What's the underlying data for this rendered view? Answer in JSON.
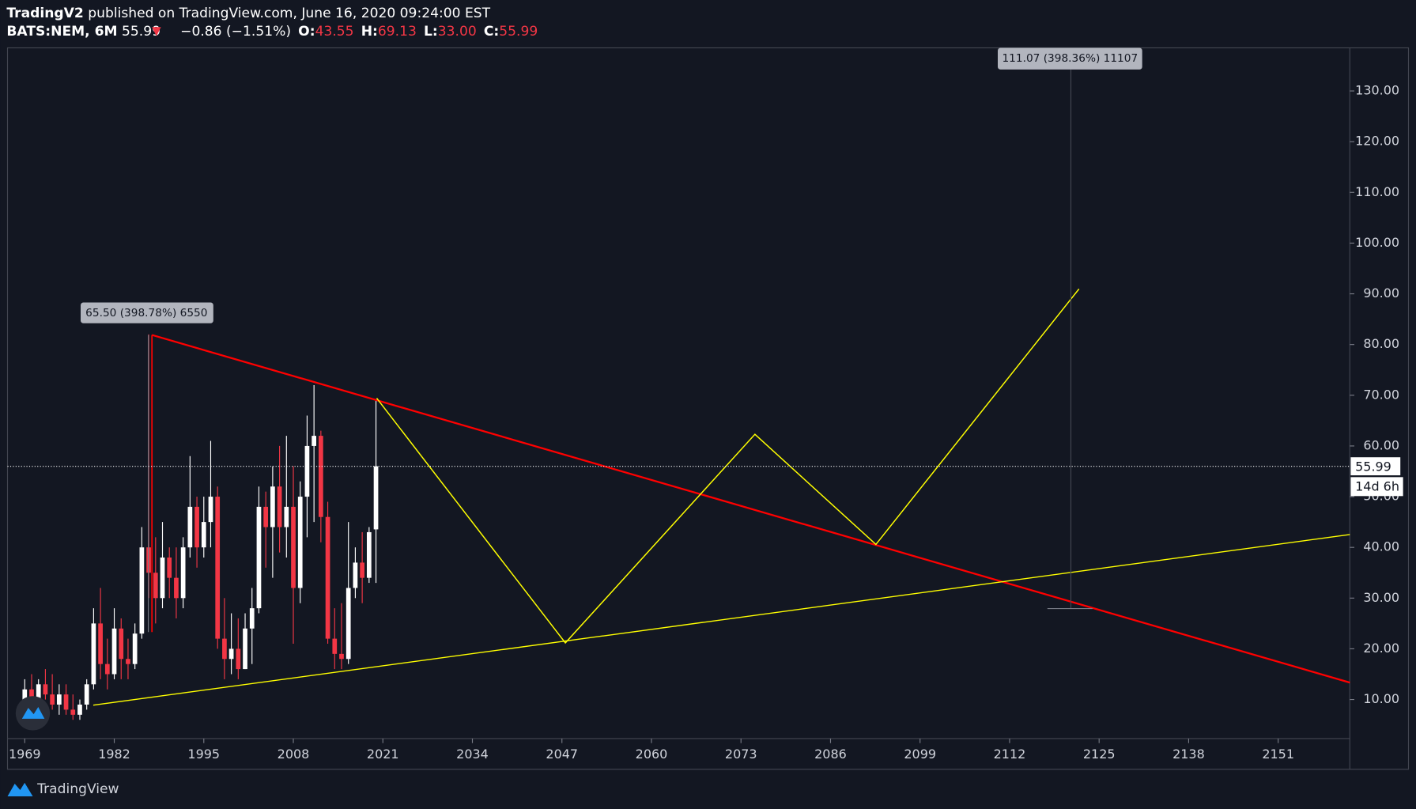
{
  "header": {
    "author": "TradingV2",
    "published": "published on TradingView.com, June 16, 2020 09:24:00 EST",
    "symbol": "BATS:NEM, 6M",
    "last": "55.99",
    "change": "−0.86 (−1.51%)",
    "ohlc": [
      {
        "label": "O:",
        "value": "43.55"
      },
      {
        "label": "H:",
        "value": "69.13"
      },
      {
        "label": "L:",
        "value": "33.00"
      },
      {
        "label": "C:",
        "value": "55.99"
      }
    ]
  },
  "chart_data": {
    "type": "candlestick",
    "ylim": [
      2.3,
      138.5
    ],
    "yticks": [
      {
        "value": 10,
        "label": "10.00"
      },
      {
        "value": 20,
        "label": "20.00"
      },
      {
        "value": 30,
        "label": "30.00"
      },
      {
        "value": 40,
        "label": "40.00"
      },
      {
        "value": 50,
        "label": "50.00"
      },
      {
        "value": 60,
        "label": "60.00"
      },
      {
        "value": 70,
        "label": "70.00"
      },
      {
        "value": 80,
        "label": "80.00"
      },
      {
        "value": 90,
        "label": "90.00"
      },
      {
        "value": 100,
        "label": "100.00"
      },
      {
        "value": 110,
        "label": "110.00"
      },
      {
        "value": 120,
        "label": "120.00"
      },
      {
        "value": 130,
        "label": "130.00"
      }
    ],
    "xlim": [
      1966.5,
      2161.4
    ],
    "xticks": [
      1969,
      1982,
      1995,
      2008,
      2021,
      2034,
      2047,
      2060,
      2073,
      2086,
      2099,
      2112,
      2125,
      2138,
      2151
    ],
    "up_color": "#ffffff",
    "down_color": "#f23645",
    "x": [
      1969,
      1970,
      1971,
      1972,
      1973,
      1974,
      1975,
      1976,
      1977,
      1978,
      1979,
      1980,
      1981,
      1982,
      1983,
      1984,
      1985,
      1986,
      1987,
      1988,
      1989,
      1990,
      1991,
      1992,
      1993,
      1994,
      1995,
      1996,
      1997,
      1998,
      1999,
      2000,
      2001,
      2002,
      2003,
      2004,
      2005,
      2006,
      2007,
      2008,
      2009,
      2010,
      2011,
      2012,
      2013,
      2014,
      2015,
      2016,
      2017,
      2018,
      2019,
      2020
    ],
    "open": [
      10,
      12,
      10,
      13,
      11,
      9,
      11,
      8,
      7,
      9,
      13,
      25,
      17,
      15,
      24,
      18,
      17,
      23,
      40,
      35,
      30,
      38,
      34,
      30,
      40,
      48,
      40,
      45,
      50,
      22,
      18,
      20,
      16,
      24,
      28,
      48,
      44,
      52,
      44,
      48,
      32,
      50,
      60,
      62,
      46,
      22,
      19,
      18,
      32,
      37,
      34,
      43.55
    ],
    "high": [
      14,
      15,
      14,
      16,
      15,
      13,
      13,
      11,
      10,
      14,
      28,
      32,
      22,
      28,
      26,
      22,
      25,
      44,
      82,
      42,
      45,
      40,
      40,
      42,
      58,
      50,
      50,
      61,
      52,
      30,
      27,
      26,
      27,
      32,
      52,
      51,
      56,
      60,
      62,
      56,
      53,
      66,
      72,
      63,
      49,
      28,
      29,
      45,
      40,
      43,
      44,
      69.13
    ],
    "low": [
      8,
      9,
      9,
      10,
      8,
      7,
      7,
      6,
      6,
      8,
      12,
      14,
      12,
      14,
      14,
      14,
      16,
      22,
      30,
      25,
      28,
      30,
      26,
      28,
      38,
      36,
      38,
      40,
      20,
      14,
      15,
      14,
      16,
      17,
      27,
      36,
      34,
      39,
      38,
      21,
      29,
      42,
      45,
      41,
      21,
      16,
      16,
      17,
      30,
      29,
      33,
      33
    ],
    "close": [
      12,
      10,
      13,
      11,
      9,
      11,
      8,
      7,
      9,
      13,
      25,
      17,
      15,
      24,
      18,
      17,
      23,
      40,
      35,
      30,
      38,
      34,
      30,
      40,
      48,
      40,
      45,
      50,
      22,
      18,
      20,
      16,
      24,
      28,
      48,
      44,
      52,
      44,
      48,
      32,
      50,
      60,
      62,
      46,
      22,
      19,
      18,
      32,
      37,
      34,
      43,
      55.99
    ],
    "current_price": {
      "value": 55.99,
      "label": "55.99"
    },
    "countdown": "14d 6h",
    "annotations": [
      "65.50 (398.78%) 6550",
      "111.07 (398.36%) 11107"
    ]
  },
  "footer": "TradingView"
}
